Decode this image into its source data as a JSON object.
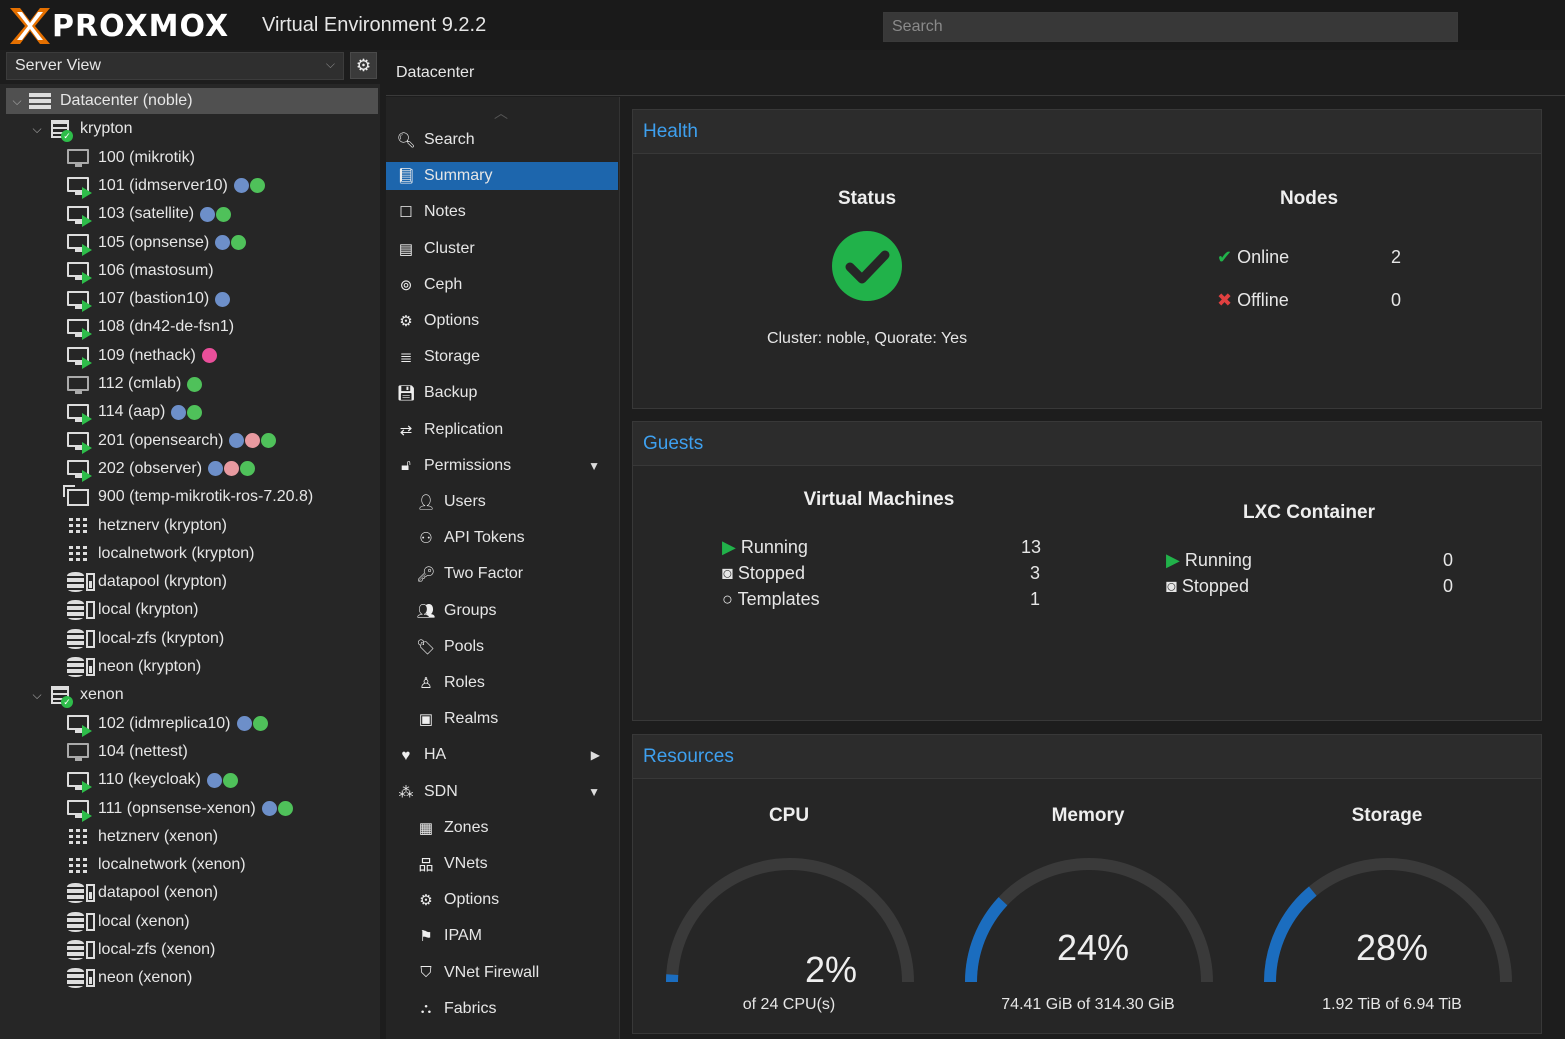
{
  "app": {
    "brand": "PROXMOX",
    "version": "Virtual Environment 9.2.2",
    "search_placeholder": "Search"
  },
  "view_selector": {
    "value": "Server View"
  },
  "breadcrumb": "Datacenter",
  "tree": {
    "datacenter": "Datacenter (noble)",
    "nodes": [
      {
        "name": "krypton",
        "items": [
          {
            "label": "100 (mikrotik)",
            "type": "vm-stopped",
            "tags": []
          },
          {
            "label": "101 (idmserver10)",
            "type": "vm-running",
            "tags": [
              "#6d8fc9",
              "#4fc15a"
            ]
          },
          {
            "label": "103 (satellite)",
            "type": "vm-running",
            "tags": [
              "#6d8fc9",
              "#4fc15a"
            ]
          },
          {
            "label": "105 (opnsense)",
            "type": "vm-running",
            "tags": [
              "#6d8fc9",
              "#4fc15a"
            ]
          },
          {
            "label": "106 (mastosum)",
            "type": "vm-running",
            "tags": []
          },
          {
            "label": "107 (bastion10)",
            "type": "vm-running",
            "tags": [
              "#6d8fc9"
            ]
          },
          {
            "label": "108 (dn42-de-fsn1)",
            "type": "vm-running",
            "tags": []
          },
          {
            "label": "109 (nethack)",
            "type": "vm-running",
            "tags": [
              "#e94f9a"
            ]
          },
          {
            "label": "112 (cmlab)",
            "type": "vm-stopped",
            "tags": [
              "#4fc15a"
            ]
          },
          {
            "label": "114 (aap)",
            "type": "vm-running",
            "tags": [
              "#6d8fc9",
              "#4fc15a"
            ]
          },
          {
            "label": "201 (opensearch)",
            "type": "vm-running",
            "tags": [
              "#6d8fc9",
              "#e89aa0",
              "#4fc15a"
            ]
          },
          {
            "label": "202 (observer)",
            "type": "vm-running",
            "tags": [
              "#6d8fc9",
              "#e89aa0",
              "#4fc15a"
            ]
          },
          {
            "label": "900 (temp-mikrotik-ros-7.20.8)",
            "type": "template",
            "tags": []
          },
          {
            "label": "hetznerv (krypton)",
            "type": "network",
            "tags": []
          },
          {
            "label": "localnetwork (krypton)",
            "type": "network",
            "tags": []
          },
          {
            "label": "datapool (krypton)",
            "type": "storage-full",
            "tags": []
          },
          {
            "label": "local (krypton)",
            "type": "storage",
            "tags": []
          },
          {
            "label": "local-zfs (krypton)",
            "type": "storage",
            "tags": []
          },
          {
            "label": "neon (krypton)",
            "type": "storage-full",
            "tags": []
          }
        ]
      },
      {
        "name": "xenon",
        "items": [
          {
            "label": "102 (idmreplica10)",
            "type": "vm-running",
            "tags": [
              "#6d8fc9",
              "#4fc15a"
            ]
          },
          {
            "label": "104 (nettest)",
            "type": "vm-stopped",
            "tags": []
          },
          {
            "label": "110 (keycloak)",
            "type": "vm-running",
            "tags": [
              "#6d8fc9",
              "#4fc15a"
            ]
          },
          {
            "label": "111 (opnsense-xenon)",
            "type": "vm-running",
            "tags": [
              "#6d8fc9",
              "#4fc15a"
            ]
          },
          {
            "label": "hetznerv (xenon)",
            "type": "network",
            "tags": []
          },
          {
            "label": "localnetwork (xenon)",
            "type": "network",
            "tags": []
          },
          {
            "label": "datapool (xenon)",
            "type": "storage-full",
            "tags": []
          },
          {
            "label": "local (xenon)",
            "type": "storage",
            "tags": []
          },
          {
            "label": "local-zfs (xenon)",
            "type": "storage",
            "tags": []
          },
          {
            "label": "neon (xenon)",
            "type": "storage-full",
            "tags": []
          }
        ]
      }
    ]
  },
  "menu": [
    {
      "label": "Search",
      "icon": "search-icon",
      "glyph": "🔍︎",
      "indent": 0
    },
    {
      "label": "Summary",
      "icon": "book-icon",
      "glyph": "📘︎",
      "indent": 0,
      "selected": true
    },
    {
      "label": "Notes",
      "icon": "note-icon",
      "glyph": "☐",
      "indent": 0
    },
    {
      "label": "Cluster",
      "icon": "server-icon",
      "glyph": "▤",
      "indent": 0
    },
    {
      "label": "Ceph",
      "icon": "ceph-icon",
      "glyph": "⊚",
      "indent": 0
    },
    {
      "label": "Options",
      "icon": "gear-icon",
      "glyph": "⚙",
      "indent": 0
    },
    {
      "label": "Storage",
      "icon": "database-icon",
      "glyph": "≣",
      "indent": 0
    },
    {
      "label": "Backup",
      "icon": "floppy-icon",
      "glyph": "💾︎",
      "indent": 0
    },
    {
      "label": "Replication",
      "icon": "retweet-icon",
      "glyph": "⇄",
      "indent": 0
    },
    {
      "label": "Permissions",
      "icon": "unlock-icon",
      "glyph": "🔓︎",
      "indent": 0,
      "arrow": "▼"
    },
    {
      "label": "Users",
      "icon": "user-icon",
      "glyph": "👤︎",
      "indent": 1
    },
    {
      "label": "API Tokens",
      "icon": "user-outline-icon",
      "glyph": "⚇",
      "indent": 1
    },
    {
      "label": "Two Factor",
      "icon": "key-icon",
      "glyph": "🔑︎",
      "indent": 1
    },
    {
      "label": "Groups",
      "icon": "users-icon",
      "glyph": "👥︎",
      "indent": 1
    },
    {
      "label": "Pools",
      "icon": "tags-icon",
      "glyph": "🏷︎",
      "indent": 1
    },
    {
      "label": "Roles",
      "icon": "male-icon",
      "glyph": "♙",
      "indent": 1
    },
    {
      "label": "Realms",
      "icon": "address-book-icon",
      "glyph": "▣",
      "indent": 1
    },
    {
      "label": "HA",
      "icon": "heartbeat-icon",
      "glyph": "♥",
      "indent": 0,
      "arrow": "▶"
    },
    {
      "label": "SDN",
      "icon": "sdn-icon",
      "glyph": "⁂",
      "indent": 0,
      "arrow": "▼"
    },
    {
      "label": "Zones",
      "icon": "th-icon",
      "glyph": "▦",
      "indent": 1
    },
    {
      "label": "VNets",
      "icon": "network-icon",
      "glyph": "品",
      "indent": 1
    },
    {
      "label": "Options",
      "icon": "gear-icon",
      "glyph": "⚙",
      "indent": 1
    },
    {
      "label": "IPAM",
      "icon": "signs-icon",
      "glyph": "⚑",
      "indent": 1
    },
    {
      "label": "VNet Firewall",
      "icon": "shield-icon",
      "glyph": "⛉",
      "indent": 1
    },
    {
      "label": "Fabrics",
      "icon": "fabric-icon",
      "glyph": "⛬",
      "indent": 1
    }
  ],
  "health": {
    "title": "Health",
    "status_heading": "Status",
    "status_text": "Cluster: noble, Quorate: Yes",
    "nodes_heading": "Nodes",
    "online_label": "Online",
    "online_value": "2",
    "offline_label": "Offline",
    "offline_value": "0"
  },
  "guests": {
    "title": "Guests",
    "vm_heading": "Virtual Machines",
    "vm_running_label": "Running",
    "vm_running_value": "13",
    "vm_stopped_label": "Stopped",
    "vm_stopped_value": "3",
    "vm_templates_label": "Templates",
    "vm_templates_value": "1",
    "lxc_heading": "LXC Container",
    "lxc_running_label": "Running",
    "lxc_running_value": "0",
    "lxc_stopped_label": "Stopped",
    "lxc_stopped_value": "0"
  },
  "resources": {
    "title": "Resources",
    "cpu": {
      "heading": "CPU",
      "percent_text": "2%",
      "fraction": 0.02,
      "detail": "of 24 CPU(s)"
    },
    "memory": {
      "heading": "Memory",
      "percent_text": "24%",
      "fraction": 0.24,
      "detail": "74.41 GiB of 314.30 GiB"
    },
    "storage": {
      "heading": "Storage",
      "percent_text": "28%",
      "fraction": 0.28,
      "detail": "1.92 TiB of 6.94 TiB"
    }
  },
  "colors": {
    "accent": "#1d66ad",
    "ok": "#21b24a",
    "error": "#e14040",
    "gauge": "#1b6dbf",
    "gauge_track": "#3a3a3a",
    "header_link": "#3ea0ef"
  }
}
